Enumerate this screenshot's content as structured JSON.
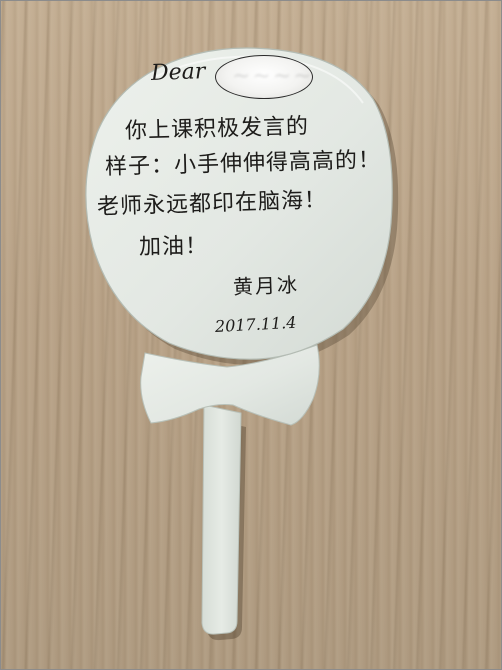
{
  "photo": {
    "subject": "lollipop-note",
    "card_color": "#e3e8e3",
    "table_color": "#b9a58a",
    "ink_color": "#1d1c1a"
  },
  "note": {
    "greeting": "Dear",
    "body_lines": [
      "你上课积极发言的",
      "样子：小手伸伸得高高的！",
      "老师永远都印在脑海！",
      "加油！"
    ],
    "signature": "黄月冰",
    "date": "2017.11.4"
  },
  "redaction": {
    "shape": "oval",
    "color": "#f3f3f1"
  }
}
